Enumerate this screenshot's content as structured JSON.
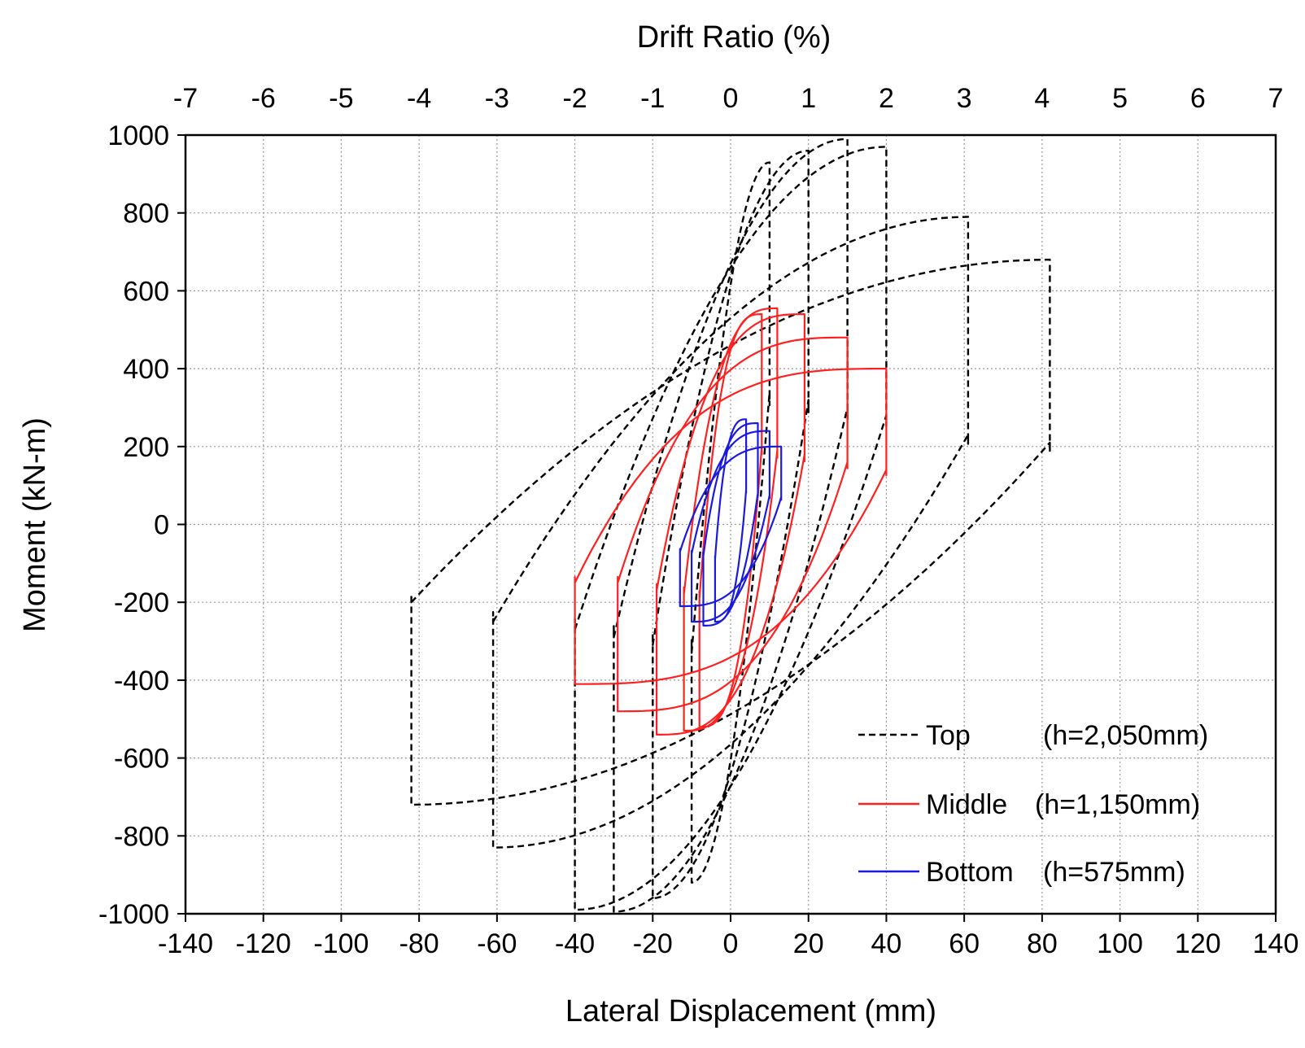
{
  "chart_data": {
    "type": "line",
    "top_axis_label": "Drift Ratio (%)",
    "xlabel": "Lateral Displacement (mm)",
    "ylabel": "Moment  (kN-m)",
    "xlim": [
      -140,
      140
    ],
    "ylim": [
      -1000,
      1000
    ],
    "x_ticks": [
      "-140",
      "-120",
      "-100",
      "-80",
      "-60",
      "-40",
      "-20",
      "0",
      "20",
      "40",
      "60",
      "80",
      "100",
      "120",
      "140"
    ],
    "y_ticks": [
      "1000",
      "800",
      "600",
      "400",
      "200",
      "0",
      "-200",
      "-400",
      "-600",
      "-800",
      "-1000"
    ],
    "top_ticks": [
      "-7",
      "-6",
      "-5",
      "-4",
      "-3",
      "-2",
      "-1",
      "0",
      "1",
      "2",
      "3",
      "4",
      "5",
      "6",
      "7"
    ],
    "grid": true,
    "legend_position": "bottom-right",
    "series": [
      {
        "name": "Top",
        "legend_label": "Top",
        "legend_detail": "(h=2,050mm)",
        "color": "#000000",
        "style": "dashed",
        "loops": [
          {
            "xmax": 10,
            "mpos": 930,
            "xmin": -10,
            "mneg": -920,
            "rpos": 340,
            "rneg": -330,
            "c": 2
          },
          {
            "xmax": 20,
            "mpos": 960,
            "xmin": -20,
            "mneg": -960,
            "rpos": 320,
            "rneg": -310,
            "c": 2
          },
          {
            "xmax": 30,
            "mpos": 990,
            "xmin": -30,
            "mneg": -995,
            "rpos": 300,
            "rneg": -290,
            "c": 2
          },
          {
            "xmax": 40,
            "mpos": 970,
            "xmin": -40,
            "mneg": -990,
            "rpos": 280,
            "rneg": -270,
            "c": 2
          },
          {
            "xmax": 61,
            "mpos": 790,
            "xmin": -61,
            "mneg": -830,
            "rpos": 230,
            "rneg": -250,
            "c": 2
          },
          {
            "xmax": 82,
            "mpos": 680,
            "xmin": -82,
            "mneg": -720,
            "rpos": 210,
            "rneg": -200,
            "c": 2
          }
        ]
      },
      {
        "name": "Middle",
        "legend_label": "Middle",
        "legend_detail": "(h=1,150mm)",
        "color": "#ff2020",
        "style": "solid",
        "loops": [
          {
            "xmax": 8,
            "mpos": 540,
            "xmin": -8,
            "mneg": -520,
            "rpos": 200,
            "rneg": -190,
            "c": 3
          },
          {
            "xmax": 12,
            "mpos": 555,
            "xmin": -12,
            "mneg": -530,
            "rpos": 190,
            "rneg": -180,
            "c": 3
          },
          {
            "xmax": 19,
            "mpos": 540,
            "xmin": -19,
            "mneg": -540,
            "rpos": 180,
            "rneg": -170,
            "c": 3
          },
          {
            "xmax": 30,
            "mpos": 480,
            "xmin": -29,
            "mneg": -480,
            "rpos": 160,
            "rneg": -150,
            "c": 3
          },
          {
            "xmax": 40,
            "mpos": 400,
            "xmin": -40,
            "mneg": -410,
            "rpos": 140,
            "rneg": -150,
            "c": 3
          }
        ]
      },
      {
        "name": "Bottom",
        "legend_label": "Bottom",
        "legend_detail": "(h=575mm)",
        "color": "#1a1adc",
        "style": "solid",
        "loops": [
          {
            "xmax": 4,
            "mpos": 270,
            "xmin": -4,
            "mneg": -250,
            "rpos": 90,
            "rneg": -90,
            "c": 3
          },
          {
            "xmax": 7,
            "mpos": 260,
            "xmin": -7,
            "mneg": -260,
            "rpos": 80,
            "rneg": -80,
            "c": 3
          },
          {
            "xmax": 10,
            "mpos": 240,
            "xmin": -10,
            "mneg": -250,
            "rpos": 75,
            "rneg": -75,
            "c": 3
          },
          {
            "xmax": 13,
            "mpos": 200,
            "xmin": -13,
            "mneg": -210,
            "rpos": 70,
            "rneg": -70,
            "c": 3
          }
        ]
      }
    ]
  }
}
